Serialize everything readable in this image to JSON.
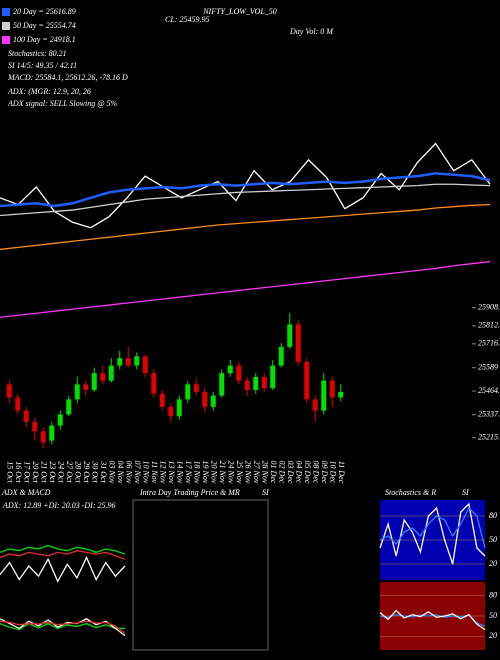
{
  "chart_data": [
    {
      "type": "line",
      "title": "NIFTY_LOW_VOL_50",
      "subtitle": "CL: 25459.95",
      "annotations": [
        "Stochastics: 80.21",
        "SI 14/5: 49.35 / 42.11",
        "MACD: 25584.1, 25612.26, -78.16  D",
        "ADX:            (MGR: 12.9, 20, 26",
        "ADX  signal: SELL Slowing @ 5%"
      ],
      "side_notes": [
        "Day Vol: 0  M"
      ],
      "ylim": [
        24800,
        26200
      ],
      "series": [
        {
          "color": "#ffffff",
          "values": [
            25700,
            25650,
            25780,
            25600,
            25520,
            25480,
            25560,
            25700,
            25860,
            25780,
            25700,
            25760,
            25820,
            25680,
            25900,
            25760,
            25820,
            25980,
            25850,
            25620,
            25700,
            25880,
            25760,
            25960,
            26100,
            25900,
            25980,
            25800
          ]
        },
        {
          "name": "20 Day = 25616.89",
          "color": "#1f5fff",
          "values": [
            25640,
            25650,
            25660,
            25640,
            25660,
            25700,
            25740,
            25760,
            25770,
            25780,
            25770,
            25790,
            25800,
            25790,
            25800,
            25810,
            25800,
            25810,
            25820,
            25810,
            25820,
            25840,
            25850,
            25860,
            25880,
            25870,
            25860,
            25830
          ]
        },
        {
          "name": "50 Day = 25554.74",
          "color": "#d0d0d0",
          "values": [
            25570,
            25580,
            25590,
            25600,
            25610,
            25630,
            25650,
            25670,
            25690,
            25700,
            25710,
            25720,
            25730,
            25740,
            25745,
            25750,
            25755,
            25760,
            25765,
            25770,
            25775,
            25780,
            25785,
            25790,
            25800,
            25800,
            25795,
            25790
          ]
        },
        {
          "color": "#ff8c1a",
          "values": [
            25320,
            25335,
            25350,
            25365,
            25380,
            25395,
            25410,
            25425,
            25440,
            25455,
            25470,
            25485,
            25500,
            25510,
            25520,
            25530,
            25540,
            25550,
            25560,
            25570,
            25580,
            25590,
            25600,
            25610,
            25625,
            25635,
            25645,
            25650
          ]
        },
        {
          "name": "100 Day = 24918.1",
          "color": "#ff33ff",
          "values": [
            24820,
            24835,
            24850,
            24865,
            24880,
            24895,
            24910,
            24925,
            24940,
            24955,
            24970,
            24985,
            25000,
            25015,
            25030,
            25045,
            25060,
            25075,
            25090,
            25105,
            25120,
            25135,
            25150,
            25165,
            25180,
            25200,
            25215,
            25230
          ]
        }
      ]
    },
    {
      "type": "candlestick",
      "ylim": [
        25150,
        25950
      ],
      "yticks": [
        25908.8,
        25812.2,
        25716.1,
        25589,
        25464.65,
        25337.9,
        25215.5
      ],
      "categories": [
        "15 Oct",
        "16 Oct",
        "17 Oct",
        "20 Oct",
        "21 Oct",
        "23 Oct",
        "24 Oct",
        "27 Oct",
        "28 Oct",
        "29 Oct",
        "30 Oct",
        "31 Oct",
        "03 Nov",
        "04 Nov",
        "06 Nov",
        "07 Nov",
        "10 Nov",
        "11 Nov",
        "12 Nov",
        "13 Nov",
        "14 Nov",
        "17 Nov",
        "18 Nov",
        "19 Nov",
        "20 Nov",
        "21 Nov",
        "24 Nov",
        "25 Nov",
        "26 Nov",
        "27 Nov",
        "28 Nov",
        "01 Dec",
        "02 Dec",
        "03 Dec",
        "04 Dec",
        "05 Dec",
        "08 Dec",
        "09 Dec",
        "10 Dec",
        "11 Dec"
      ],
      "open": [
        25500,
        25430,
        25360,
        25300,
        25250,
        25200,
        25280,
        25340,
        25420,
        25500,
        25470,
        25560,
        25520,
        25600,
        25640,
        25600,
        25650,
        25560,
        25450,
        25380,
        25330,
        25420,
        25500,
        25460,
        25380,
        25440,
        25560,
        25600,
        25520,
        25470,
        25540,
        25480,
        25600,
        25700,
        25820,
        25620,
        25420,
        25360,
        25520,
        25430
      ],
      "high": [
        25520,
        25450,
        25380,
        25320,
        25270,
        25300,
        25360,
        25440,
        25540,
        25520,
        25590,
        25600,
        25640,
        25680,
        25700,
        25670,
        25660,
        25580,
        25470,
        25400,
        25440,
        25520,
        25530,
        25480,
        25460,
        25580,
        25630,
        25620,
        25540,
        25560,
        25560,
        25630,
        25720,
        25880,
        25840,
        25640,
        25440,
        25560,
        25540,
        25500
      ],
      "low": [
        25400,
        25340,
        25270,
        25200,
        25160,
        25180,
        25260,
        25330,
        25400,
        25440,
        25460,
        25500,
        25510,
        25580,
        25590,
        25580,
        25540,
        25430,
        25360,
        25300,
        25310,
        25400,
        25440,
        25350,
        25360,
        25430,
        25540,
        25500,
        25440,
        25450,
        25460,
        25470,
        25590,
        25690,
        25600,
        25400,
        25300,
        25340,
        25380,
        25410
      ],
      "close": [
        25430,
        25360,
        25300,
        25250,
        25190,
        25280,
        25340,
        25420,
        25500,
        25470,
        25560,
        25520,
        25600,
        25640,
        25600,
        25650,
        25560,
        25450,
        25380,
        25330,
        25420,
        25500,
        25460,
        25380,
        25440,
        25560,
        25600,
        25520,
        25470,
        25540,
        25480,
        25600,
        25700,
        25820,
        25620,
        25420,
        25360,
        25520,
        25430,
        25460
      ]
    },
    {
      "type": "line",
      "title": "ADX  & MACD",
      "subtitle": "ADX: 12.89 +DI: 20.03 -DI: 25.96",
      "ylim": [
        0,
        50
      ],
      "series": [
        {
          "color": "#00e000",
          "values": [
            28,
            30,
            29,
            31,
            30,
            32,
            30,
            29,
            31,
            30,
            28,
            30,
            29,
            27
          ]
        },
        {
          "color": "#e03030",
          "values": [
            25,
            27,
            26,
            28,
            27,
            26,
            28,
            27,
            29,
            28,
            27,
            28,
            26,
            24
          ]
        },
        {
          "color": "#ffffff",
          "values": [
            15,
            22,
            12,
            20,
            14,
            24,
            11,
            21,
            13,
            25,
            12,
            22,
            14,
            20
          ]
        }
      ]
    },
    {
      "type": "line",
      "ylim": [
        -100,
        100
      ],
      "series": [
        {
          "color": "#00e000",
          "values": [
            10,
            -5,
            -15,
            10,
            -8,
            10,
            -10,
            5,
            -2,
            10,
            -7,
            5,
            -10,
            -10
          ]
        },
        {
          "color": "#ffffff",
          "values": [
            30,
            10,
            -10,
            20,
            0,
            25,
            -5,
            15,
            10,
            30,
            5,
            20,
            -10,
            -40
          ]
        },
        {
          "color": "#e03030",
          "values": [
            20,
            15,
            5,
            10,
            8,
            15,
            5,
            10,
            12,
            20,
            12,
            15,
            0,
            -30
          ]
        }
      ]
    },
    {
      "type": "empty",
      "title": "Intra Day Trading Price  & MR",
      "subtitle": "SI"
    },
    {
      "type": "line",
      "title": "Stochastics & R",
      "subtitle": "SI",
      "ylim": [
        0,
        100
      ],
      "yticks": [
        20,
        50,
        80
      ],
      "background": "#0000b0",
      "series": [
        {
          "color": "#ffffff",
          "values": [
            40,
            70,
            30,
            75,
            60,
            35,
            80,
            90,
            50,
            20,
            85,
            95,
            40,
            30
          ]
        },
        {
          "color": "#2f7fff",
          "values": [
            50,
            55,
            45,
            60,
            65,
            55,
            70,
            80,
            75,
            55,
            70,
            90,
            80,
            40
          ]
        }
      ]
    },
    {
      "type": "line",
      "ylim": [
        0,
        100
      ],
      "yticks": [
        20,
        50,
        80
      ],
      "background": "#8b0000",
      "series": [
        {
          "color": "#2f7fff",
          "values": [
            50,
            48,
            52,
            50,
            49,
            51,
            50,
            52,
            48,
            50,
            49,
            51,
            40,
            35
          ]
        },
        {
          "color": "#ffffff",
          "values": [
            55,
            45,
            58,
            47,
            52,
            49,
            56,
            48,
            50,
            53,
            46,
            52,
            38,
            30
          ]
        }
      ]
    }
  ]
}
